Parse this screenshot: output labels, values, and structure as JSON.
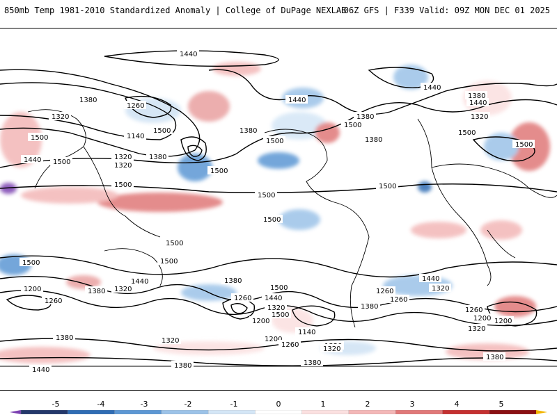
{
  "header": {
    "title": "850mb Temp 1981-2010 Standardized Anomaly | College of DuPage NEXLAB",
    "run_info": "06Z GFS | F339 Valid: 09Z MON DEC 01 2025"
  },
  "map": {
    "contour_labels": [
      "1440",
      "1440",
      "1440",
      "1380",
      "1380",
      "1380",
      "1380",
      "1320",
      "1320",
      "1320",
      "1260",
      "1140",
      "1440",
      "1380",
      "1380",
      "1320",
      "1500",
      "1500",
      "1500",
      "1500",
      "1500",
      "1440",
      "1500",
      "1500",
      "1500",
      "1500",
      "1500",
      "1500",
      "1500",
      "1500",
      "1500",
      "1500",
      "1440",
      "1380",
      "1320",
      "1200",
      "1260",
      "1380",
      "1320",
      "1440",
      "1260",
      "1200",
      "1320",
      "1500",
      "1440",
      "1320",
      "1200",
      "1380",
      "1260",
      "1140",
      "1200",
      "1260",
      "1320",
      "1380",
      "1380",
      "1260",
      "1500",
      "1320",
      "1260",
      "1380",
      "1320",
      "1200",
      "1440",
      "1380",
      "1320"
    ]
  },
  "colorbar": {
    "ticks": [
      "-5",
      "-4",
      "-3",
      "-2",
      "-1",
      "0",
      "1",
      "2",
      "3",
      "4",
      "5"
    ],
    "colors": [
      "#7a3fb0",
      "#24386b",
      "#2f6cb4",
      "#5c97d4",
      "#9cc3e8",
      "#d4e6f6",
      "#ffffff",
      "#fbe0e0",
      "#f3b7b7",
      "#e07878",
      "#c43030",
      "#8a0f12",
      "#f2b400"
    ]
  }
}
